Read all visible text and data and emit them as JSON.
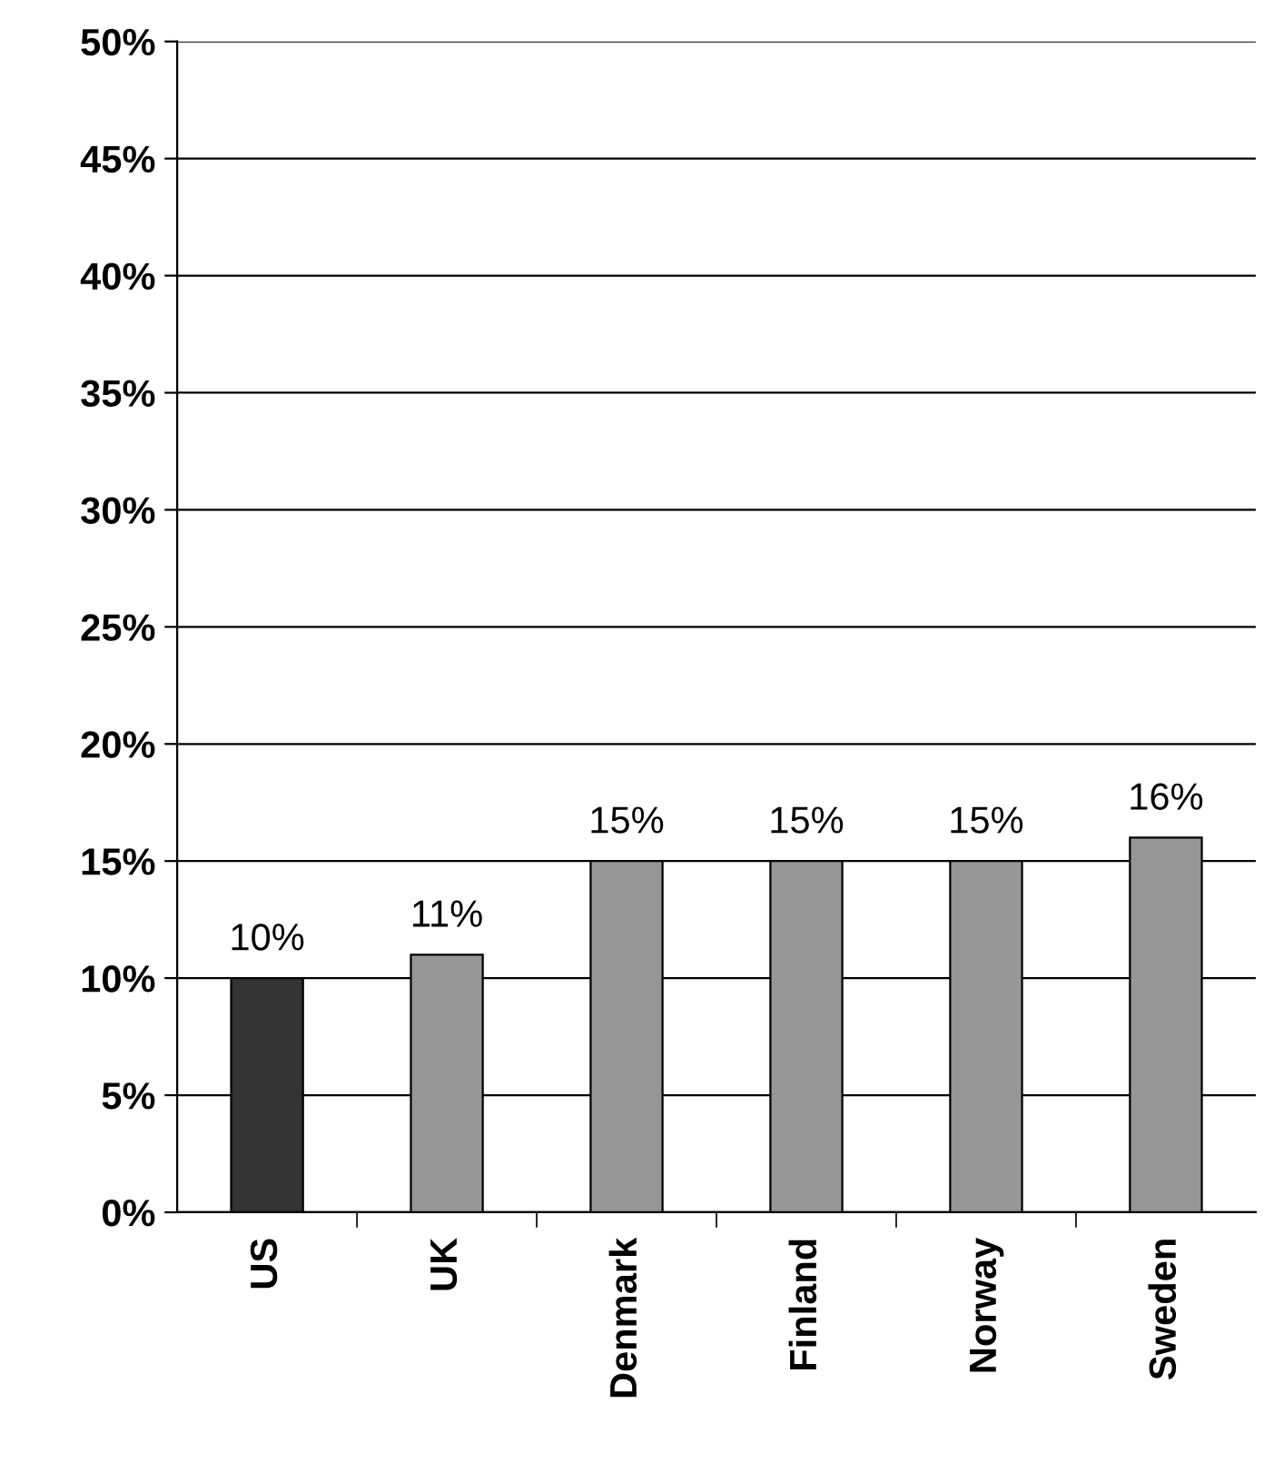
{
  "chart_data": {
    "type": "bar",
    "categories": [
      "US",
      "UK",
      "Denmark",
      "Finland",
      "Norway",
      "Sweden"
    ],
    "values": [
      10,
      11,
      15,
      15,
      15,
      16
    ],
    "colors": [
      "#333333",
      "#969696",
      "#969696",
      "#969696",
      "#969696",
      "#969696"
    ],
    "value_labels": [
      "10%",
      "11%",
      "15%",
      "15%",
      "15%",
      "16%"
    ],
    "ylim": [
      0,
      50
    ],
    "yticks": [
      {
        "value": 0,
        "label": "0%"
      },
      {
        "value": 5,
        "label": "5%"
      },
      {
        "value": 10,
        "label": "10%"
      },
      {
        "value": 15,
        "label": "15%"
      },
      {
        "value": 20,
        "label": "20%"
      },
      {
        "value": 25,
        "label": "25%"
      },
      {
        "value": 30,
        "label": "30%"
      },
      {
        "value": 35,
        "label": "35%"
      },
      {
        "value": 40,
        "label": "40%"
      },
      {
        "value": 45,
        "label": "45%"
      },
      {
        "value": 50,
        "label": "50%"
      }
    ],
    "grid": "y",
    "legend": false
  }
}
